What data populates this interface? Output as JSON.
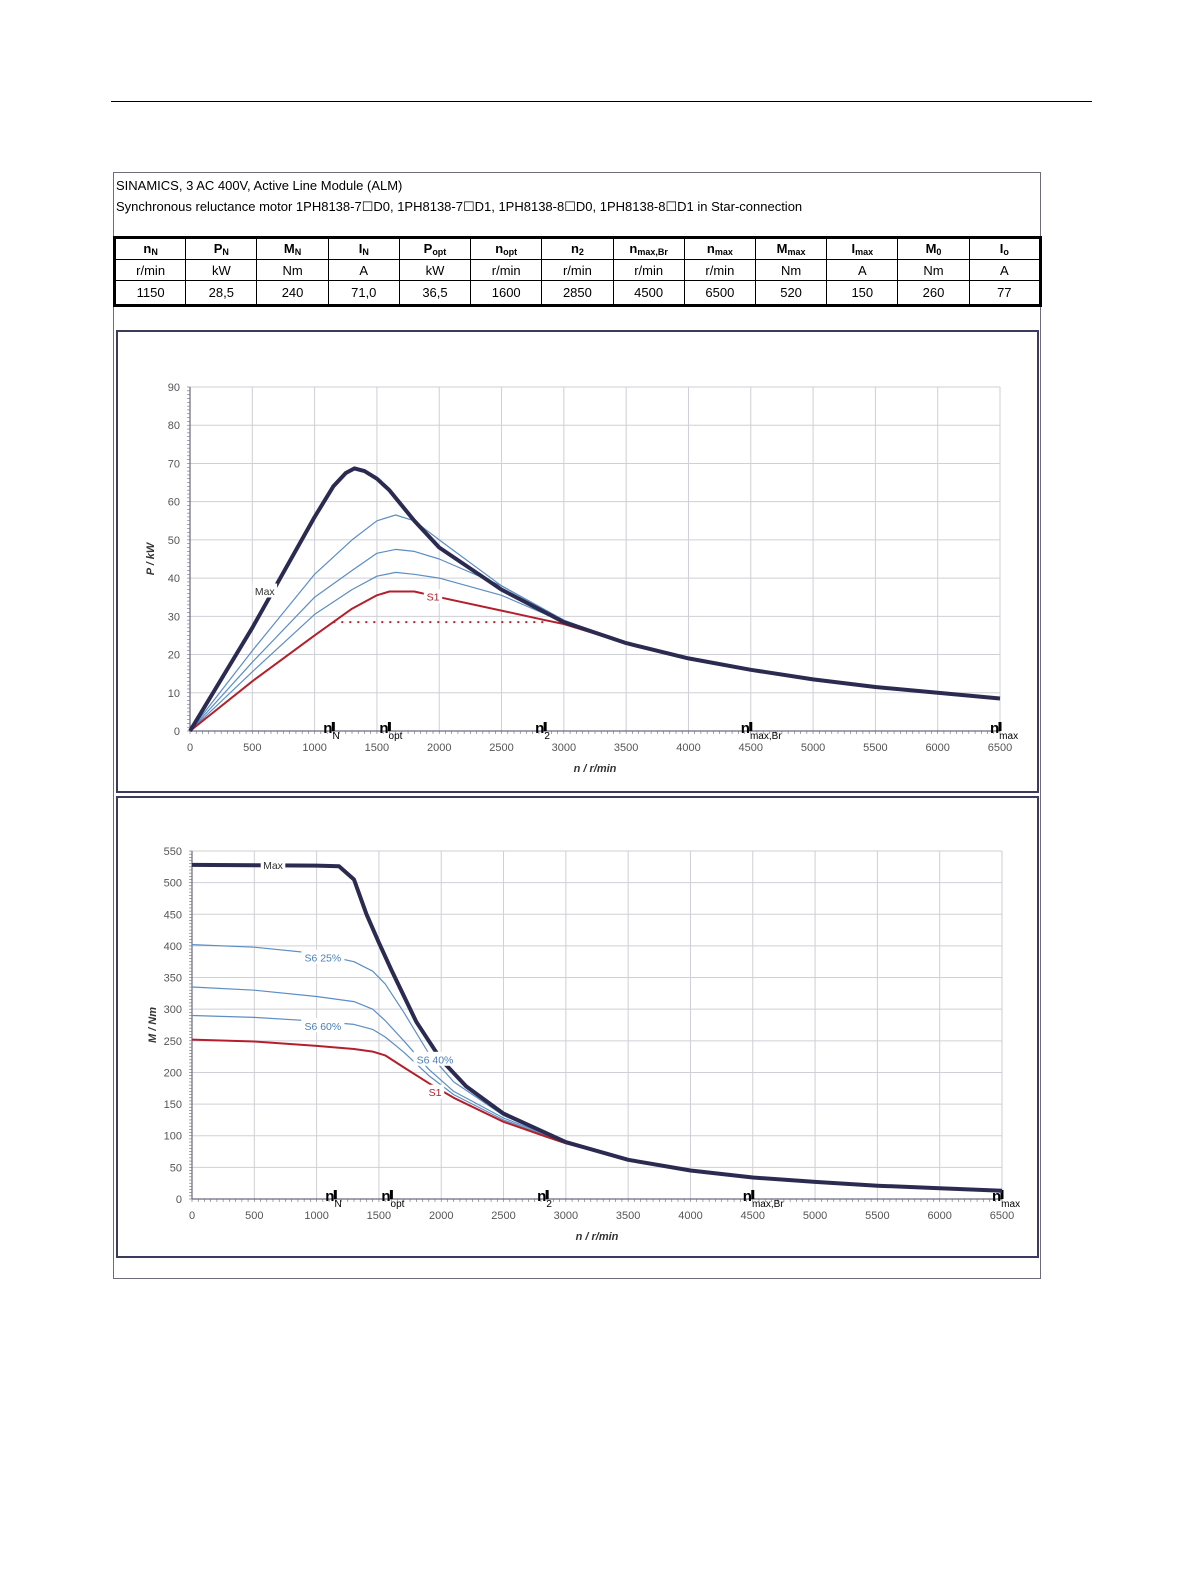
{
  "header": {
    "line1": "SINAMICS, 3 AC 400V, Active Line Module (ALM)",
    "line2": "Synchronous reluctance motor  1PH8138-7☐D0,  1PH8138-7☐D1,  1PH8138-8☐D0,  1PH8138-8☐D1   in Star-connection"
  },
  "spec_table": {
    "columns": [
      {
        "sym": "n",
        "sub": "N",
        "unit": "r/min",
        "value": "1150"
      },
      {
        "sym": "P",
        "sub": "N",
        "unit": "kW",
        "value": "28,5"
      },
      {
        "sym": "M",
        "sub": "N",
        "unit": "Nm",
        "value": "240"
      },
      {
        "sym": "I",
        "sub": "N",
        "unit": "A",
        "value": "71,0"
      },
      {
        "sym": "P",
        "sub": "opt",
        "unit": "kW",
        "value": "36,5"
      },
      {
        "sym": "n",
        "sub": "opt",
        "unit": "r/min",
        "value": "1600"
      },
      {
        "sym": "n",
        "sub": "2",
        "unit": "r/min",
        "value": "2850"
      },
      {
        "sym": "n",
        "sub": "max,Br",
        "unit": "r/min",
        "value": "4500"
      },
      {
        "sym": "n",
        "sub": "max",
        "unit": "r/min",
        "value": "6500"
      },
      {
        "sym": "M",
        "sub": "max",
        "unit": "Nm",
        "value": "520"
      },
      {
        "sym": "I",
        "sub": "max",
        "unit": "A",
        "value": "150"
      },
      {
        "sym": "M",
        "sub": "0",
        "unit": "Nm",
        "value": "260"
      },
      {
        "sym": "I",
        "sub": "o",
        "unit": "A",
        "value": "77"
      }
    ]
  },
  "colors": {
    "max": "#2b2b52",
    "s6": "#5b8ec4",
    "s1": "#b3202c",
    "grid": "#cfcfd6",
    "s6_label": "#4a7fb8"
  },
  "markers": [
    {
      "n": "n",
      "sub": "N",
      "x": 1150
    },
    {
      "n": "n",
      "sub": "opt",
      "x": 1600
    },
    {
      "n": "n",
      "sub": "2",
      "x": 2850
    },
    {
      "n": "n",
      "sub": "max,Br",
      "x": 4500
    },
    {
      "n": "n",
      "sub": "max",
      "x": 6500
    }
  ],
  "chart_data": [
    {
      "type": "line",
      "xlabel": "n / r/min",
      "ylabel": "P / kW",
      "xlim": [
        0,
        6500
      ],
      "ylim": [
        0,
        90
      ],
      "xticks": [
        0,
        500,
        1000,
        1500,
        2000,
        2500,
        3000,
        3500,
        4000,
        4500,
        5000,
        5500,
        6000,
        6500
      ],
      "yticks": [
        0,
        10,
        20,
        30,
        40,
        50,
        60,
        70,
        80,
        90
      ],
      "grid": true,
      "series": [
        {
          "name": "Max",
          "role": "max",
          "label_at": [
            600,
            36.5
          ],
          "x": [
            0,
            500,
            1000,
            1150,
            1250,
            1320,
            1400,
            1500,
            1600,
            1800,
            2000,
            2500,
            3000,
            3500,
            4000,
            4500,
            5000,
            5500,
            6000,
            6500
          ],
          "y": [
            0,
            27,
            56,
            64,
            67.5,
            68.7,
            68,
            66,
            63,
            55,
            48,
            37,
            28.5,
            23,
            19,
            16,
            13.5,
            11.5,
            10,
            8.5
          ]
        },
        {
          "role": "s6",
          "x": [
            0,
            500,
            1000,
            1300,
            1500,
            1650,
            1800,
            2000,
            2500,
            3000,
            3500,
            4000,
            4500,
            5000,
            5500,
            6000,
            6500
          ],
          "y": [
            0,
            21,
            41,
            50,
            55,
            56.5,
            55,
            50,
            38,
            29,
            23,
            19,
            16,
            13.5,
            11.5,
            10,
            8.5
          ]
        },
        {
          "role": "s6",
          "x": [
            0,
            500,
            1000,
            1300,
            1500,
            1650,
            1800,
            2000,
            2500,
            3000,
            3500,
            4000,
            4500,
            5000,
            5500,
            6000,
            6500
          ],
          "y": [
            0,
            18,
            35,
            42,
            46.5,
            47.5,
            47,
            45,
            38,
            29,
            23,
            19,
            16,
            13.5,
            11.5,
            10,
            8.5
          ]
        },
        {
          "role": "s6",
          "x": [
            0,
            500,
            1000,
            1300,
            1500,
            1650,
            1800,
            2000,
            2500,
            3000,
            3500,
            4000,
            4500,
            5000,
            5500,
            6000,
            6500
          ],
          "y": [
            0,
            15.5,
            30.5,
            37,
            40.5,
            41.5,
            41,
            40,
            35.5,
            28.5,
            23,
            19,
            16,
            13.5,
            11.5,
            10,
            8.5
          ]
        },
        {
          "name": "S1",
          "role": "s1",
          "label_at": [
            1950,
            35
          ],
          "x": [
            0,
            500,
            1000,
            1150,
            1300,
            1500,
            1600,
            1800,
            2000,
            2500,
            2850,
            3000,
            3500,
            4000,
            4500,
            5000,
            5500,
            6000,
            6500
          ],
          "y": [
            0,
            13,
            25,
            28.5,
            32,
            35.5,
            36.5,
            36.5,
            35,
            31.5,
            29,
            28,
            23,
            19,
            16,
            13.5,
            11.5,
            10,
            8.5
          ]
        }
      ],
      "reference_line": {
        "y": 28.5,
        "x": [
          1150,
          2850
        ],
        "style": "dotted",
        "role": "s1"
      }
    },
    {
      "type": "line",
      "xlabel": "n / r/min",
      "ylabel": "M / Nm",
      "xlim": [
        0,
        6500
      ],
      "ylim": [
        0,
        550
      ],
      "xticks": [
        0,
        500,
        1000,
        1500,
        2000,
        2500,
        3000,
        3500,
        4000,
        4500,
        5000,
        5500,
        6000,
        6500
      ],
      "yticks": [
        0,
        50,
        100,
        150,
        200,
        250,
        300,
        350,
        400,
        450,
        500,
        550
      ],
      "grid": true,
      "series": [
        {
          "name": "Max",
          "role": "max",
          "label_at": [
            650,
            527
          ],
          "x": [
            0,
            1000,
            1180,
            1300,
            1400,
            1500,
            1600,
            1800,
            2000,
            2200,
            2500,
            3000,
            3500,
            4000,
            4500,
            5000,
            5500,
            6000,
            6500
          ],
          "y": [
            528,
            527,
            526,
            505,
            450,
            405,
            362,
            280,
            220,
            178,
            135,
            90,
            62,
            45,
            34,
            27,
            21,
            17,
            13
          ]
        },
        {
          "name": "S6 25%",
          "role": "s6",
          "label_at": [
            1050,
            381
          ],
          "x": [
            0,
            500,
            1000,
            1300,
            1450,
            1550,
            1700,
            1900,
            2100,
            2500,
            3000,
            3500,
            4000,
            4500,
            5000,
            5500,
            6000,
            6500
          ],
          "y": [
            402,
            398,
            388,
            375,
            360,
            340,
            295,
            230,
            185,
            132,
            90,
            62,
            45,
            34,
            27,
            21,
            17,
            13
          ]
        },
        {
          "name": "S6 40%",
          "role": "s6",
          "label_at": [
            1950,
            220
          ],
          "x": [
            0,
            500,
            1000,
            1300,
            1450,
            1550,
            1700,
            1900,
            2100,
            2500,
            3000,
            3500,
            4000,
            4500,
            5000,
            5500,
            6000,
            6500
          ],
          "y": [
            335,
            330,
            320,
            312,
            300,
            282,
            250,
            205,
            170,
            128,
            90,
            62,
            45,
            34,
            27,
            21,
            17,
            13
          ]
        },
        {
          "name": "S6 60%",
          "role": "s6",
          "label_at": [
            1050,
            273
          ],
          "x": [
            0,
            500,
            1000,
            1300,
            1450,
            1550,
            1700,
            1900,
            2100,
            2500,
            3000,
            3500,
            4000,
            4500,
            5000,
            5500,
            6000,
            6500
          ],
          "y": [
            290,
            287,
            281,
            276,
            268,
            256,
            232,
            195,
            165,
            125,
            89,
            62,
            45,
            34,
            27,
            21,
            17,
            13
          ]
        },
        {
          "name": "S1",
          "role": "s1",
          "label_at": [
            1950,
            168
          ],
          "x": [
            0,
            500,
            1000,
            1300,
            1450,
            1550,
            1700,
            1900,
            2100,
            2500,
            2850,
            3000,
            3500,
            4000,
            4500,
            5000,
            5500,
            6000,
            6500
          ],
          "y": [
            252,
            249,
            242,
            237,
            233,
            227,
            208,
            183,
            160,
            122,
            98,
            88,
            62,
            45,
            34,
            27,
            21,
            17,
            13
          ]
        }
      ]
    }
  ]
}
